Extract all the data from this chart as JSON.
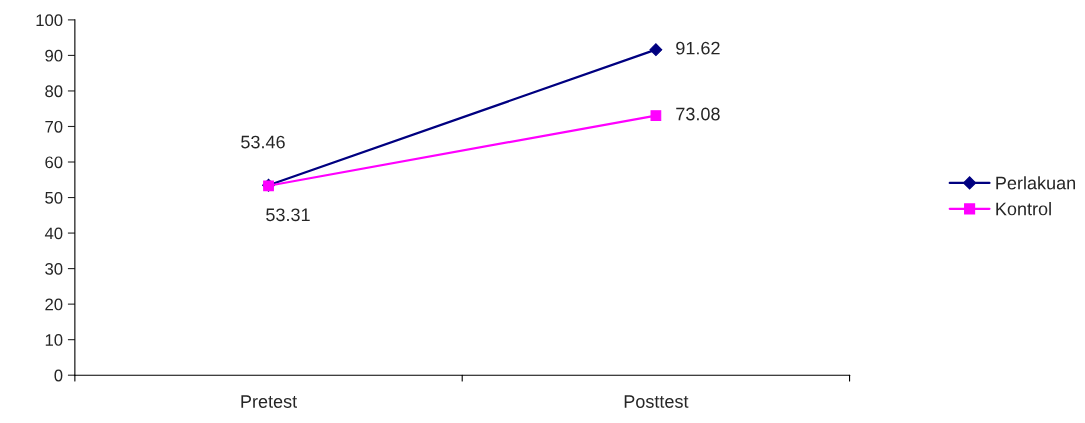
{
  "chart_data": {
    "type": "line",
    "categories": [
      "Pretest",
      "Posttest"
    ],
    "series": [
      {
        "name": "Perlakuan",
        "color": "#000080",
        "marker": "diamond",
        "values": [
          53.46,
          91.62
        ]
      },
      {
        "name": "Kontrol",
        "color": "#ff00ff",
        "marker": "square",
        "values": [
          53.31,
          73.08
        ]
      }
    ],
    "ylim": [
      0,
      100
    ],
    "yticks": [
      0,
      10,
      20,
      30,
      40,
      50,
      60,
      70,
      80,
      90,
      100
    ],
    "grid": false,
    "legend": "right",
    "data_labels": true
  }
}
